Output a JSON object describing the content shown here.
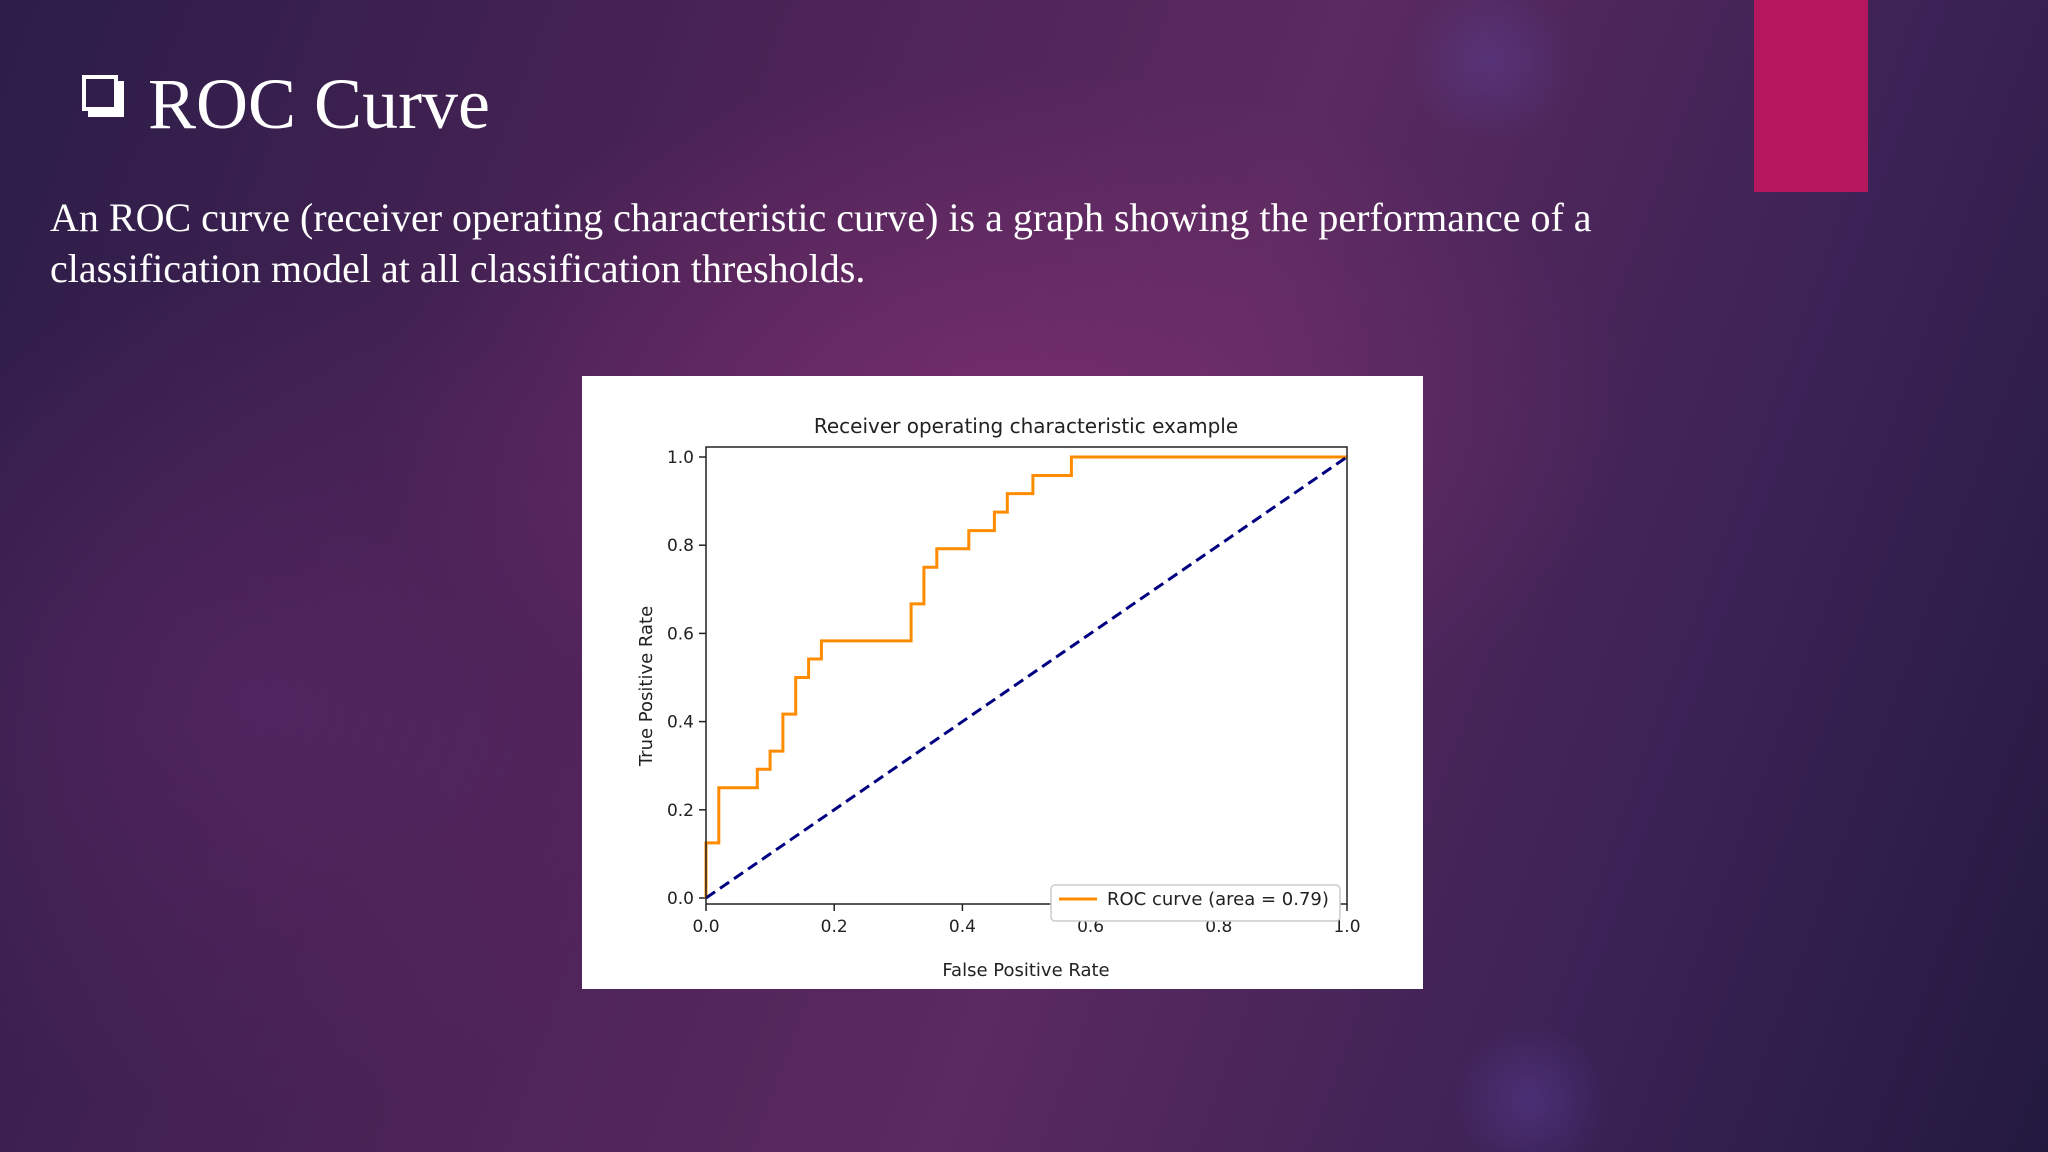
{
  "slide": {
    "title": "ROC Curve",
    "title_icon": "checkbox-icon",
    "body": "An ROC curve (receiver operating characteristic curve) is a graph showing the performance of a classification model at all classification thresholds.",
    "accent_color": "#b5175f"
  },
  "chart_data": {
    "type": "line",
    "title": "Receiver operating characteristic example",
    "xlabel": "False Positive Rate",
    "ylabel": "True Positive Rate",
    "xlim": [
      0.0,
      1.0
    ],
    "ylim": [
      0.0,
      1.0
    ],
    "xticks": [
      "0.0",
      "0.2",
      "0.4",
      "0.6",
      "0.8",
      "1.0"
    ],
    "yticks": [
      "0.0",
      "0.2",
      "0.4",
      "0.6",
      "0.8",
      "1.0"
    ],
    "grid": false,
    "legend_position": "lower-right",
    "series": [
      {
        "name": "ROC curve (area = 0.79)",
        "color": "#ff8c00",
        "style": "step",
        "x": [
          0.0,
          0.0,
          0.02,
          0.02,
          0.08,
          0.08,
          0.1,
          0.1,
          0.12,
          0.12,
          0.14,
          0.14,
          0.16,
          0.16,
          0.18,
          0.18,
          0.32,
          0.32,
          0.34,
          0.34,
          0.36,
          0.36,
          0.41,
          0.41,
          0.45,
          0.45,
          0.47,
          0.47,
          0.51,
          0.51,
          0.57,
          0.57,
          1.0
        ],
        "y": [
          0.0,
          0.125,
          0.125,
          0.25,
          0.25,
          0.292,
          0.292,
          0.333,
          0.333,
          0.417,
          0.417,
          0.5,
          0.5,
          0.542,
          0.542,
          0.583,
          0.583,
          0.667,
          0.667,
          0.75,
          0.75,
          0.792,
          0.792,
          0.833,
          0.833,
          0.875,
          0.875,
          0.917,
          0.917,
          0.958,
          0.958,
          1.0,
          1.0
        ]
      },
      {
        "name": "",
        "color": "#000080",
        "style": "dashed",
        "x": [
          0.0,
          1.0
        ],
        "y": [
          0.0,
          1.0
        ]
      }
    ]
  }
}
